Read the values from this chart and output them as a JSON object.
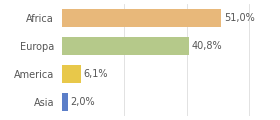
{
  "categories": [
    "Africa",
    "Europa",
    "America",
    "Asia"
  ],
  "values": [
    51.0,
    40.8,
    6.1,
    2.0
  ],
  "labels": [
    "51,0%",
    "40,8%",
    "6,1%",
    "2,0%"
  ],
  "bar_colors": [
    "#e8b87a",
    "#b5c98a",
    "#e8c84a",
    "#5b7ec8"
  ],
  "background_color": "#ffffff",
  "xlim": [
    0,
    68
  ],
  "bar_height": 0.65,
  "label_fontsize": 7,
  "category_fontsize": 7,
  "grid_lines": [
    20,
    40,
    60
  ],
  "grid_color": "#dddddd"
}
